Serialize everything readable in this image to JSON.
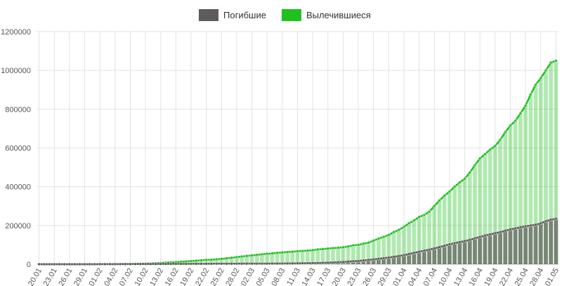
{
  "chart_data": {
    "type": "bar-line",
    "categories": [
      "20.01",
      null,
      null,
      "23.01",
      null,
      null,
      "26.01",
      null,
      null,
      "29.01",
      null,
      null,
      "01.02",
      null,
      null,
      "04.02",
      null,
      null,
      "07.02",
      null,
      null,
      "10.02",
      null,
      null,
      "13.02",
      null,
      null,
      "16.02",
      null,
      null,
      "19.02",
      null,
      null,
      "22.02",
      null,
      null,
      "25.02",
      null,
      null,
      "28.02",
      null,
      null,
      "02.03",
      null,
      null,
      "05.03",
      null,
      null,
      "08.03",
      null,
      null,
      "11.03",
      null,
      null,
      "14.03",
      null,
      null,
      "17.03",
      null,
      null,
      "20.03",
      null,
      null,
      "23.03",
      null,
      null,
      "26.03",
      null,
      null,
      "29.03",
      null,
      null,
      "01.04",
      null,
      null,
      "04.04",
      null,
      null,
      "07.04",
      null,
      null,
      "10.04",
      null,
      null,
      "13.04",
      null,
      null,
      "16.04",
      null,
      null,
      "19.04",
      null,
      null,
      "22.04",
      null,
      null,
      "25.04",
      null,
      null,
      "28.04",
      null,
      null,
      "01.05"
    ],
    "series": [
      {
        "name": "Погибшие",
        "color": "#5f5b5b",
        "values": [
          0,
          0,
          0,
          17,
          18,
          26,
          42,
          56,
          82,
          106,
          132,
          213,
          259,
          362,
          426,
          492,
          565,
          638,
          724,
          813,
          910,
          1018,
          1115,
          1261,
          1383,
          1526,
          1669,
          1775,
          1873,
          2009,
          2126,
          2247,
          2360,
          2460,
          2618,
          2699,
          2763,
          2800,
          2858,
          2923,
          2977,
          3050,
          3117,
          3202,
          3285,
          3387,
          3494,
          3599,
          3827,
          4025,
          4296,
          4628,
          4981,
          5430,
          5833,
          6520,
          7168,
          7945,
          8938,
          10270,
          11830,
          13430,
          15340,
          17180,
          19600,
          22250,
          24980,
          28180,
          31350,
          34680,
          38340,
          42390,
          47180,
          52840,
          58920,
          64880,
          69970,
          75180,
          82010,
          88450,
          95640,
          102590,
          108640,
          114080,
          119630,
          125780,
          134000,
          141000,
          148000,
          154000,
          160000,
          166000,
          173000,
          180000,
          185000,
          191000,
          196000,
          200000,
          204000,
          211000,
          222000,
          230000,
          235000
        ]
      },
      {
        "name": "Вылечившиеся",
        "color": "#1fc11f",
        "values": [
          0,
          0,
          0,
          30,
          35,
          40,
          50,
          60,
          100,
          130,
          170,
          220,
          280,
          370,
          470,
          630,
          890,
          1150,
          1540,
          2050,
          2650,
          3280,
          3940,
          5150,
          6300,
          8100,
          9400,
          10900,
          12600,
          14400,
          16200,
          18200,
          20000,
          22700,
          23200,
          24900,
          27700,
          30400,
          33300,
          36700,
          39800,
          42700,
          45600,
          48200,
          51200,
          53800,
          55900,
          58400,
          60700,
          62500,
          64200,
          66900,
          68300,
          70300,
          72600,
          76000,
          78300,
          80800,
          83300,
          84900,
          87400,
          91700,
          97600,
          100000,
          106000,
          111000,
          122000,
          132000,
          141000,
          151000,
          166000,
          177000,
          193000,
          211000,
          226000,
          244000,
          254000,
          271000,
          300000,
          329000,
          353000,
          375000,
          400000,
          422000,
          441000,
          473000,
          511000,
          546000,
          568000,
          591000,
          610000,
          642000,
          681000,
          715000,
          740000,
          778000,
          818000,
          876000,
          926000,
          960000,
          1000000,
          1040000,
          1050000
        ]
      }
    ],
    "ylim": [
      0,
      1200000
    ],
    "yticks": [
      0,
      200000,
      400000,
      600000,
      800000,
      1000000,
      1200000
    ],
    "grid": true,
    "legend": "top"
  }
}
